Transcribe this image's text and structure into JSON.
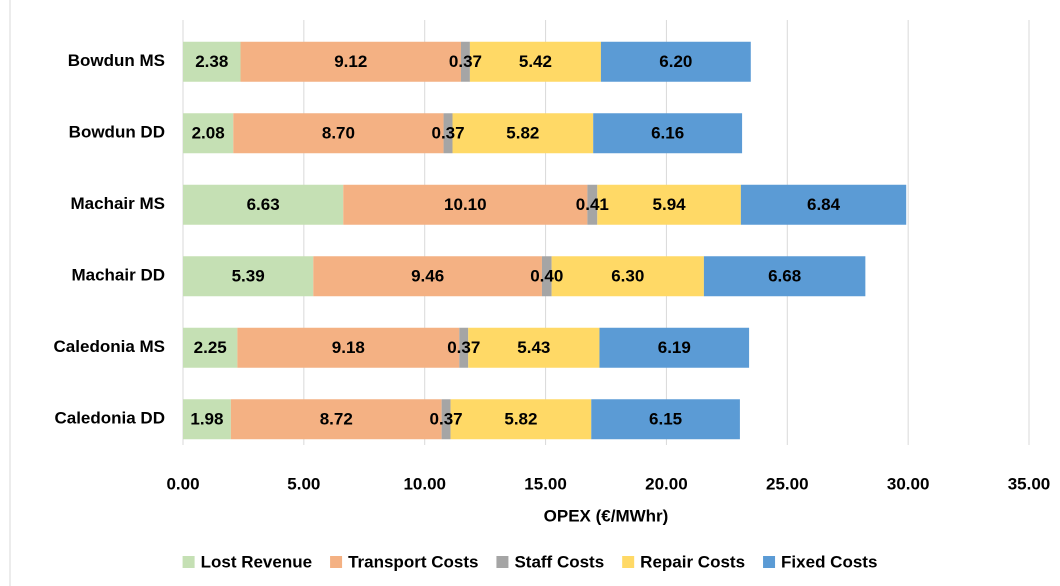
{
  "chart_data": {
    "type": "stacked-bar-horizontal",
    "x_label": "OPEX (€/MWhr)",
    "categories": [
      "Bowdun MS",
      "Bowdun DD",
      "Machair MS",
      "Machair DD",
      "Caledonia MS",
      "Caledonia DD"
    ],
    "series": [
      {
        "name": "Lost Revenue",
        "color": "#c5e0b4",
        "values": [
          2.38,
          2.08,
          6.63,
          5.39,
          2.25,
          1.98
        ],
        "value_labels": [
          "2.38",
          "2.08",
          "6.63",
          "5.39",
          "2.25",
          "1.98"
        ]
      },
      {
        "name": "Transport Costs",
        "color": "#f4b183",
        "values": [
          9.12,
          8.7,
          10.1,
          9.46,
          9.18,
          8.72
        ],
        "value_labels": [
          "9.12",
          "8.70",
          "10.10",
          "9.46",
          "9.18",
          "8.72"
        ]
      },
      {
        "name": "Staff Costs",
        "color": "#a5a5a5",
        "values": [
          0.37,
          0.37,
          0.41,
          0.4,
          0.37,
          0.37
        ],
        "value_labels": [
          "0.37",
          "0.37",
          "0.41",
          "0.40",
          "0.37",
          "0.37"
        ]
      },
      {
        "name": "Repair Costs",
        "color": "#ffd966",
        "values": [
          5.42,
          5.82,
          5.94,
          6.3,
          5.43,
          5.82
        ],
        "value_labels": [
          "5.42",
          "5.82",
          "5.94",
          "6.30",
          "5.43",
          "5.82"
        ]
      },
      {
        "name": "Fixed Costs",
        "color": "#5b9bd5",
        "values": [
          6.2,
          6.16,
          6.84,
          6.68,
          6.19,
          6.15
        ],
        "value_labels": [
          "6.20",
          "6.16",
          "6.84",
          "6.68",
          "6.19",
          "6.15"
        ]
      }
    ],
    "xlim": [
      0,
      35
    ],
    "xticks": [
      {
        "value": 0,
        "label": "0.00"
      },
      {
        "value": 5,
        "label": "5.00"
      },
      {
        "value": 10,
        "label": "10.00"
      },
      {
        "value": 15,
        "label": "15.00"
      },
      {
        "value": 20,
        "label": "20.00"
      },
      {
        "value": 25,
        "label": "25.00"
      },
      {
        "value": 30,
        "label": "30.00"
      },
      {
        "value": 35,
        "label": "35.00"
      }
    ],
    "grid": true,
    "legend": "bottom"
  }
}
